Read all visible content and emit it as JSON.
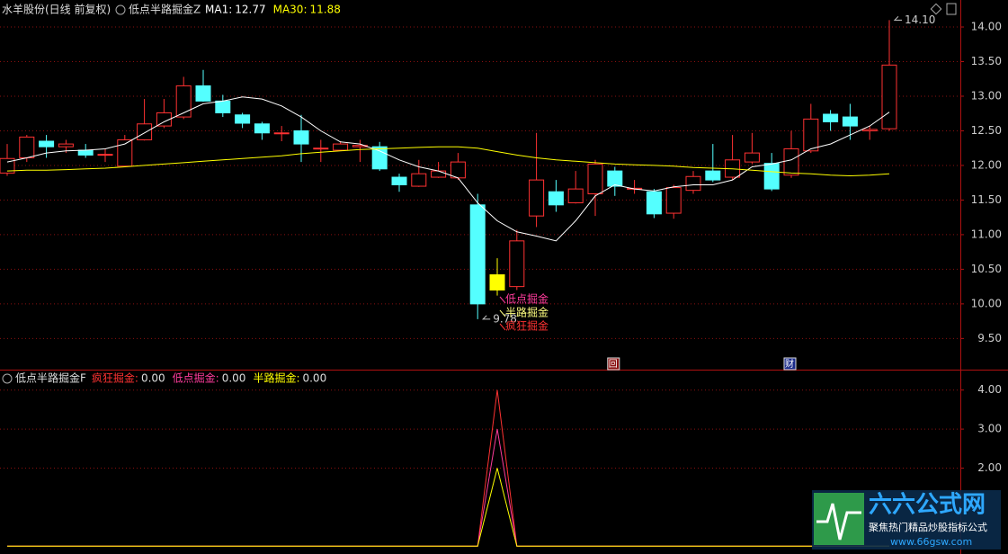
{
  "chart_data": [
    {
      "type": "candlestick",
      "title": "水羊股份(日线 前复权)",
      "indicator_title": "低点半路掘金Z",
      "open": [
        11.89,
        12.11,
        12.35,
        12.27,
        12.22,
        12.15,
        11.99,
        12.37,
        12.57,
        12.7,
        13.15,
        12.93,
        12.73,
        12.6,
        12.46,
        12.5,
        12.24,
        12.22,
        12.27,
        12.27,
        11.83,
        11.7,
        11.83,
        11.82,
        11.43,
        10.2,
        10.25,
        11.27,
        11.62,
        11.46,
        11.59,
        11.92,
        11.66,
        11.62,
        11.31,
        11.64,
        11.92,
        11.83,
        12.05,
        12.03,
        11.86,
        12.21,
        12.74,
        12.7,
        12.5,
        12.53
      ],
      "high": [
        12.31,
        12.44,
        12.44,
        12.37,
        12.31,
        12.24,
        12.44,
        12.96,
        12.96,
        13.28,
        13.38,
        13.02,
        12.76,
        12.63,
        12.57,
        12.73,
        12.37,
        12.35,
        12.37,
        12.34,
        11.88,
        12.08,
        12.05,
        12.18,
        11.59,
        10.66,
        11.07,
        12.47,
        11.79,
        11.92,
        12.08,
        11.98,
        11.79,
        11.66,
        11.72,
        11.92,
        12.31,
        12.44,
        12.47,
        12.18,
        12.5,
        12.89,
        12.8,
        12.89,
        12.57,
        14.1
      ],
      "low": [
        11.85,
        12.05,
        12.11,
        12.18,
        12.11,
        12.05,
        12.02,
        12.36,
        12.54,
        12.67,
        12.92,
        12.7,
        12.54,
        12.37,
        12.35,
        12.05,
        12.05,
        12.21,
        12.05,
        11.92,
        11.62,
        11.69,
        11.82,
        11.79,
        9.78,
        10.12,
        10.2,
        11.11,
        11.33,
        11.45,
        11.27,
        11.56,
        11.59,
        11.24,
        11.23,
        11.59,
        11.76,
        11.79,
        12.02,
        11.63,
        11.82,
        12.18,
        12.5,
        12.37,
        12.37,
        12.5
      ],
      "close": [
        12.1,
        12.41,
        12.27,
        12.31,
        12.15,
        12.16,
        12.37,
        12.6,
        12.76,
        13.15,
        12.93,
        12.76,
        12.61,
        12.47,
        12.47,
        12.31,
        12.25,
        12.31,
        12.29,
        11.95,
        11.72,
        11.88,
        11.92,
        12.05,
        10.0,
        10.42,
        10.91,
        11.79,
        11.43,
        11.66,
        12.02,
        11.7,
        11.67,
        11.3,
        11.68,
        11.84,
        11.79,
        12.08,
        12.18,
        11.66,
        12.24,
        12.67,
        12.63,
        12.57,
        12.52,
        13.45
      ],
      "up_color": "#ff3232",
      "down_color": "#54ffff",
      "highlight_index": 25,
      "highlight_color": "#ffff00",
      "series": [
        {
          "name": "MA1:",
          "color": "#ffffff",
          "value_label": "12.77",
          "values": [
            12.05,
            12.11,
            12.18,
            12.21,
            12.22,
            12.24,
            12.31,
            12.47,
            12.63,
            12.76,
            12.89,
            12.93,
            12.99,
            12.96,
            12.86,
            12.7,
            12.5,
            12.34,
            12.31,
            12.21,
            12.08,
            11.98,
            11.92,
            11.82,
            11.46,
            11.2,
            11.04,
            10.98,
            10.91,
            11.2,
            11.56,
            11.72,
            11.66,
            11.63,
            11.69,
            11.72,
            11.72,
            11.79,
            11.98,
            12.02,
            12.08,
            12.24,
            12.31,
            12.44,
            12.57,
            12.77
          ]
        },
        {
          "name": "MA30:",
          "color": "#ffff00",
          "value_label": "11.88",
          "values": [
            11.92,
            11.93,
            11.93,
            11.94,
            11.95,
            11.96,
            11.98,
            12.0,
            12.02,
            12.04,
            12.06,
            12.08,
            12.1,
            12.12,
            12.14,
            12.17,
            12.19,
            12.21,
            12.23,
            12.24,
            12.25,
            12.26,
            12.27,
            12.27,
            12.25,
            12.2,
            12.15,
            12.11,
            12.08,
            12.06,
            12.04,
            12.02,
            12.01,
            12.0,
            11.99,
            11.97,
            11.96,
            11.95,
            11.93,
            11.91,
            11.89,
            11.88,
            11.86,
            11.85,
            11.86,
            11.88
          ]
        }
      ],
      "ylim": [
        9.05,
        14.39
      ],
      "yticks": [
        {
          "value": 14,
          "label": "14.00"
        },
        {
          "value": 13.5,
          "label": "13.50"
        },
        {
          "value": 13,
          "label": "13.00"
        },
        {
          "value": 12.5,
          "label": "12.50"
        },
        {
          "value": 12,
          "label": "12.00"
        },
        {
          "value": 11.5,
          "label": "11.50"
        },
        {
          "value": 11,
          "label": "11.00"
        },
        {
          "value": 10.5,
          "label": "10.50"
        },
        {
          "value": 10,
          "label": "10.00"
        },
        {
          "value": 9.5,
          "label": "9.50"
        }
      ],
      "annotations": [
        {
          "index": 45,
          "value": 14.1,
          "label": "14.10"
        },
        {
          "index": 24,
          "value": 9.78,
          "label": "9.78"
        }
      ],
      "signals": [
        {
          "text": "低点掘金",
          "color": "#ff3c9c"
        },
        {
          "text": "半路掘金",
          "color": "#ffff80"
        },
        {
          "text": "疯狂掘金",
          "color": "#ff3232"
        }
      ],
      "markers": [
        {
          "index": 31,
          "label": "回"
        },
        {
          "index": 40,
          "label": "财"
        }
      ],
      "grid": true
    },
    {
      "type": "line",
      "title": "低点半路掘金F",
      "series": [
        {
          "name": "疯狂掘金:",
          "color": "#ff3232",
          "value_label": "0.00",
          "values": [
            0,
            0,
            0,
            0,
            0,
            0,
            0,
            0,
            0,
            0,
            0,
            0,
            0,
            0,
            0,
            0,
            0,
            0,
            0,
            0,
            0,
            0,
            0,
            0,
            0,
            4,
            0,
            0,
            0,
            0,
            0,
            0,
            0,
            0,
            0,
            0,
            0,
            0,
            0,
            0,
            0,
            0,
            0,
            0,
            0,
            0
          ]
        },
        {
          "name": "低点掘金:",
          "color": "#ff3c9c",
          "value_label": "0.00",
          "values": [
            0,
            0,
            0,
            0,
            0,
            0,
            0,
            0,
            0,
            0,
            0,
            0,
            0,
            0,
            0,
            0,
            0,
            0,
            0,
            0,
            0,
            0,
            0,
            0,
            0,
            3,
            0,
            0,
            0,
            0,
            0,
            0,
            0,
            0,
            0,
            0,
            0,
            0,
            0,
            0,
            0,
            0,
            0,
            0,
            0,
            0
          ]
        },
        {
          "name": "半路掘金:",
          "color": "#ffff00",
          "value_label": "0.00",
          "values": [
            0,
            0,
            0,
            0,
            0,
            0,
            0,
            0,
            0,
            0,
            0,
            0,
            0,
            0,
            0,
            0,
            0,
            0,
            0,
            0,
            0,
            0,
            0,
            0,
            0,
            2,
            0,
            0,
            0,
            0,
            0,
            0,
            0,
            0,
            0,
            0,
            0,
            0,
            0,
            0,
            0,
            0,
            0,
            0,
            0,
            0
          ]
        }
      ],
      "ylim": [
        -0.2,
        4.5
      ],
      "yticks": [
        {
          "value": 4,
          "label": "4.00"
        },
        {
          "value": 3,
          "label": "3.00"
        },
        {
          "value": 2,
          "label": "2.00"
        }
      ],
      "grid": true
    }
  ],
  "logo": {
    "title": "六六公式网",
    "slogan": "聚焦热门精品炒股指标公式",
    "url": "www.66gsw.com"
  }
}
